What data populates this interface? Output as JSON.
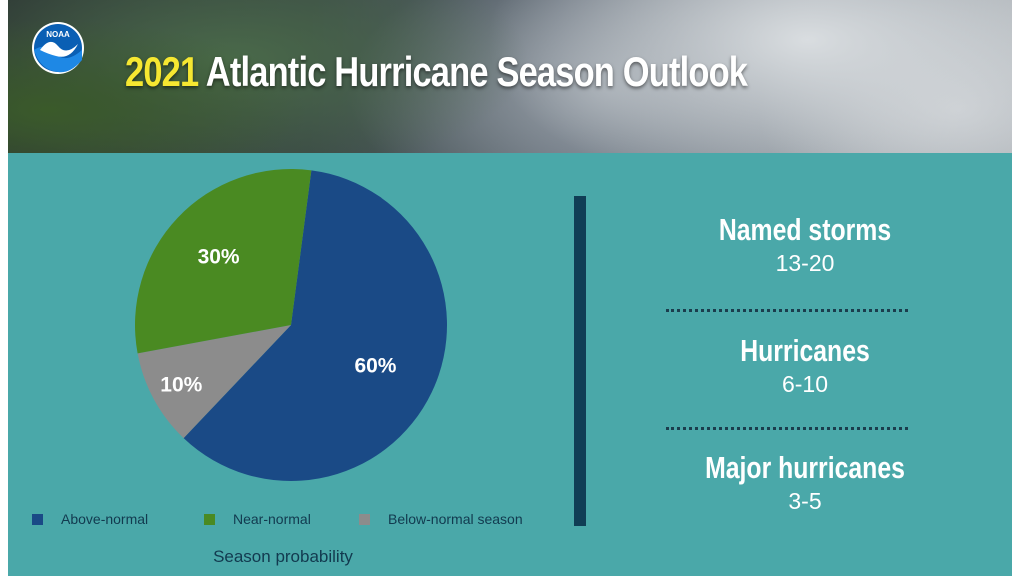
{
  "header": {
    "title_year": "2021",
    "title_rest": " Atlantic Hurricane Season Outlook",
    "logo_text": "NOAA"
  },
  "chart_data": {
    "type": "pie",
    "title": "Season probability",
    "slices": [
      {
        "label": "Above-normal",
        "value": 60,
        "display": "60%",
        "color": "#1a4a86"
      },
      {
        "label": "Near-normal",
        "value": 30,
        "display": "30%",
        "color": "#4a8a22"
      },
      {
        "label": "Below-normal season",
        "value": 10,
        "display": "10%",
        "color": "#8c8c8c"
      }
    ]
  },
  "stats": [
    {
      "label": "Named storms",
      "value": "13-20"
    },
    {
      "label": "Hurricanes",
      "value": "6-10"
    },
    {
      "label": "Major hurricanes",
      "value": "3-5"
    }
  ],
  "colors": {
    "panel": "#4aa8a9",
    "divider": "#103e55",
    "title_accent": "#f6e731"
  }
}
